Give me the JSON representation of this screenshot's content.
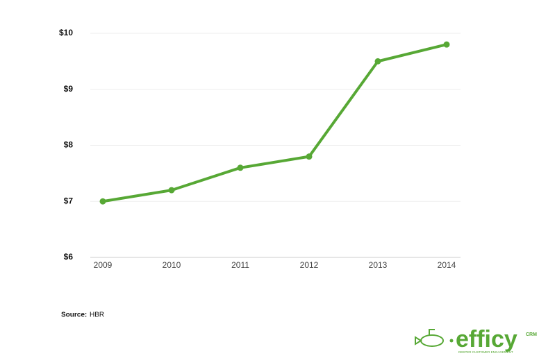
{
  "chart_data": {
    "type": "line",
    "categories": [
      "2009",
      "2010",
      "2011",
      "2012",
      "2013",
      "2014"
    ],
    "series": [
      {
        "color": "#57a835",
        "values": [
          7,
          7.2,
          7.6,
          7.8,
          9.5,
          9.8
        ]
      }
    ],
    "ylim": [
      6,
      10
    ],
    "yticks": [
      {
        "value": 6,
        "label": "$6"
      },
      {
        "value": 7,
        "label": "$7"
      },
      {
        "value": 8,
        "label": "$8"
      },
      {
        "value": 9,
        "label": "$9"
      },
      {
        "value": 10,
        "label": "$10"
      }
    ],
    "grid": true
  },
  "footer": {
    "source_label": "Source:",
    "source": "HBR"
  },
  "logo": {
    "name": "efficy",
    "suffix": "CRM",
    "tagline": "DEEPER CUSTOMER ENGAGEMENT"
  }
}
